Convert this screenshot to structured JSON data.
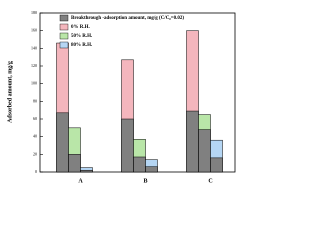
{
  "chart_data": {
    "type": "bar",
    "y_label": "Adsorbed amount, mg/g",
    "categories": [
      "A",
      "B",
      "C"
    ],
    "ylim": [
      0,
      180
    ],
    "yticks": [
      0,
      20,
      40,
      60,
      80,
      100,
      120,
      140,
      160,
      180
    ],
    "breakthrough": {
      "name": "Breakthrough -adsorption amount, mg/g (C/C₀=0.02)",
      "color": "#808080",
      "values": [
        [
          67,
          20,
          2
        ],
        [
          60,
          17,
          6
        ],
        [
          69,
          48,
          16
        ]
      ]
    },
    "series": [
      {
        "name": "0% R.H.",
        "color": "#f4b6bd",
        "values": [
          146,
          127,
          160
        ]
      },
      {
        "name": "50% R.H.",
        "color": "#b9e6a8",
        "values": [
          50,
          37,
          65
        ]
      },
      {
        "name": "80% R.H.",
        "color": "#b5d6f4",
        "values": [
          5,
          14,
          36
        ]
      }
    ]
  }
}
